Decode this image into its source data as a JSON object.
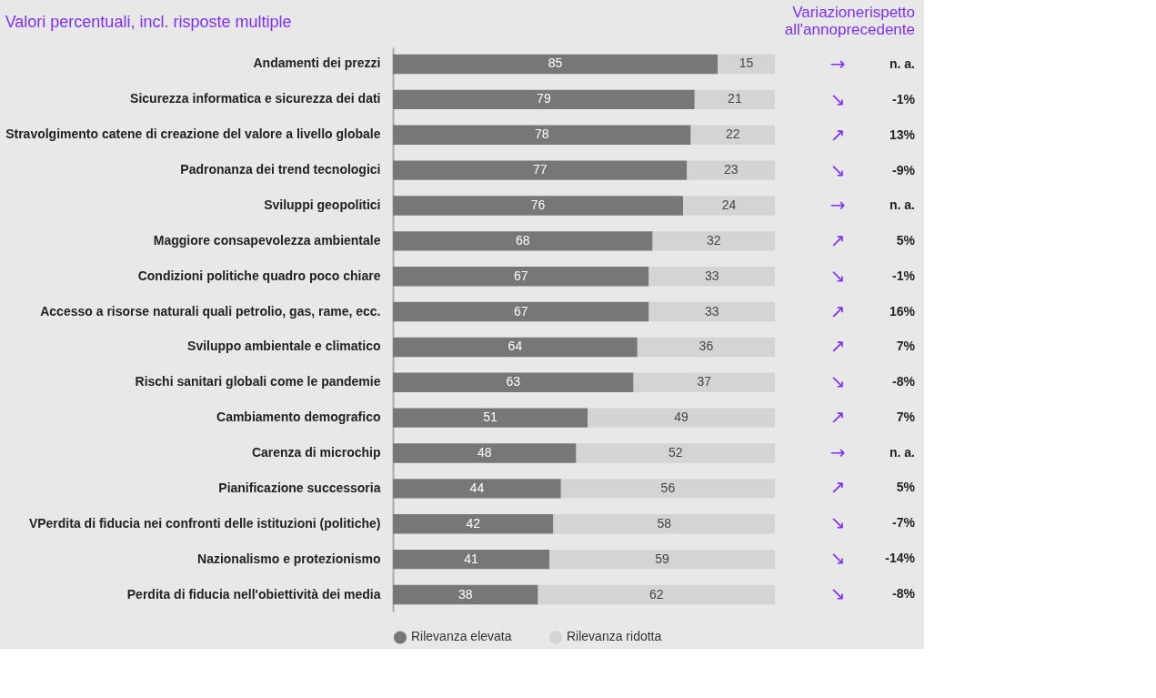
{
  "chart_data": {
    "type": "bar",
    "orientation": "horizontal",
    "stacked": true,
    "data_labels": true,
    "legend": "bottom",
    "grid": false,
    "title": "Valori percentuali, incl. risposte multiple",
    "categories": [
      "Andamenti dei prezzi",
      "Sicurezza informatica e sicurezza dei dati",
      "Stravolgimento catene di creazione del valore a livello globale",
      "Padronanza dei trend tecnologici",
      "Sviluppi geopolitici",
      "Maggiore consapevolezza ambientale",
      "Condizioni politiche quadro poco chiare",
      "Accesso a risorse naturali quali petrolio, gas, rame, ecc.",
      "Sviluppo ambientale e climatico",
      "Rischi sanitari globali come le pandemie",
      "Cambiamento demografico",
      "Carenza di microchip",
      "Pianificazione successoria",
      "VPerdita di fiducia nei confronti delle istituzioni (politiche)",
      "Nazionalismo e protezionismo",
      "Perdita di fiducia nell'obiettività dei media"
    ],
    "series": [
      {
        "name": "Rilevanza elevata",
        "color": "#777777",
        "values": [
          85,
          79,
          78,
          77,
          76,
          68,
          67,
          67,
          64,
          63,
          51,
          48,
          44,
          42,
          41,
          38
        ]
      },
      {
        "name": "Rilevanza ridotta",
        "color": "#d4d4d4",
        "values": [
          15,
          21,
          22,
          23,
          24,
          32,
          33,
          33,
          36,
          37,
          49,
          52,
          56,
          58,
          59,
          62
        ]
      }
    ],
    "annotations": [
      "Variazionerispetto all'annoprecedente",
      "→",
      "n. a.",
      "↘",
      "-1%",
      "↗",
      "13%",
      "↘",
      "-9%",
      "→",
      "n. a.",
      "↗",
      "5%",
      "↘",
      "-1%",
      "↗",
      "16%",
      "↗",
      "7%",
      "↘",
      "-8%",
      "↗",
      "7%",
      "→",
      "n. a.",
      "↗",
      "5%",
      "↘",
      "-7%",
      "↘",
      "-14%",
      "↘",
      "-8%"
    ]
  }
}
